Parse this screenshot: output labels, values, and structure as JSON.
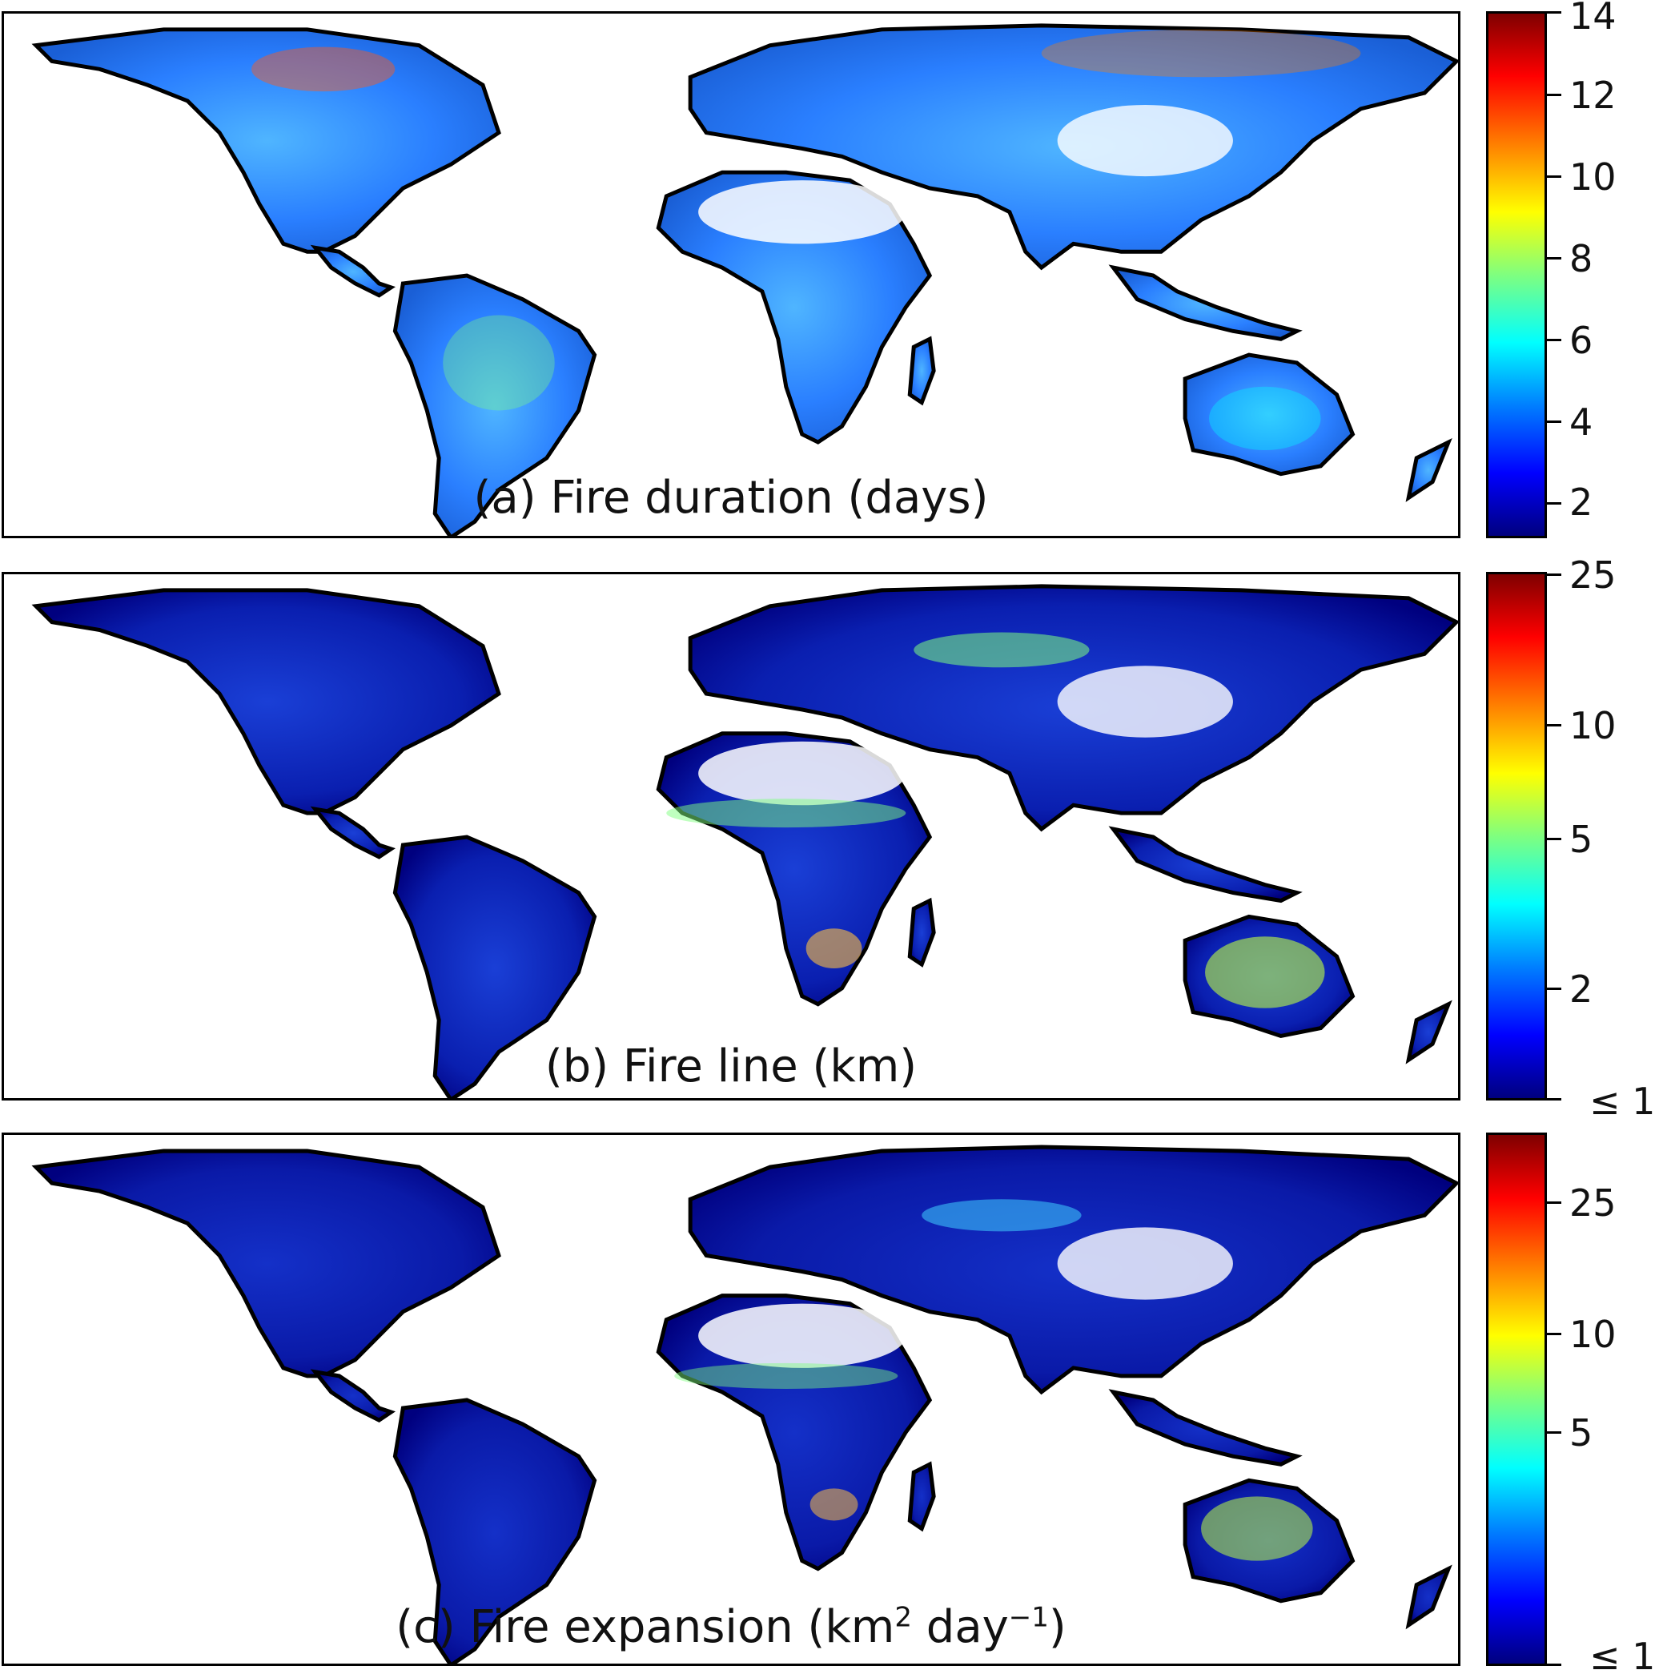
{
  "panels": [
    {
      "id": "a",
      "caption": "(a) Fire duration (days)",
      "colorbar": {
        "ticks": [
          "14",
          "12",
          "10",
          "8",
          "6",
          "4",
          "2"
        ]
      }
    },
    {
      "id": "b",
      "caption": "(b) Fire line (km)",
      "colorbar": {
        "ticks": [
          "25",
          "10",
          "5",
          "2",
          "≤ 1"
        ]
      }
    },
    {
      "id": "c",
      "caption_main": "(c) Fire expansion (km",
      "caption_sup1": "2",
      "caption_mid": " day",
      "caption_sup2": "−1",
      "caption_end": ")",
      "colorbar": {
        "ticks": [
          "25",
          "10",
          "5",
          "≤ 1"
        ]
      }
    }
  ],
  "colors": {
    "colormap": [
      "#00007f",
      "#0000ff",
      "#007fff",
      "#00ffff",
      "#7fff7f",
      "#ffff00",
      "#ff7f00",
      "#ff0000",
      "#7f0000"
    ],
    "coastline": "#000000",
    "background": "#ffffff"
  }
}
